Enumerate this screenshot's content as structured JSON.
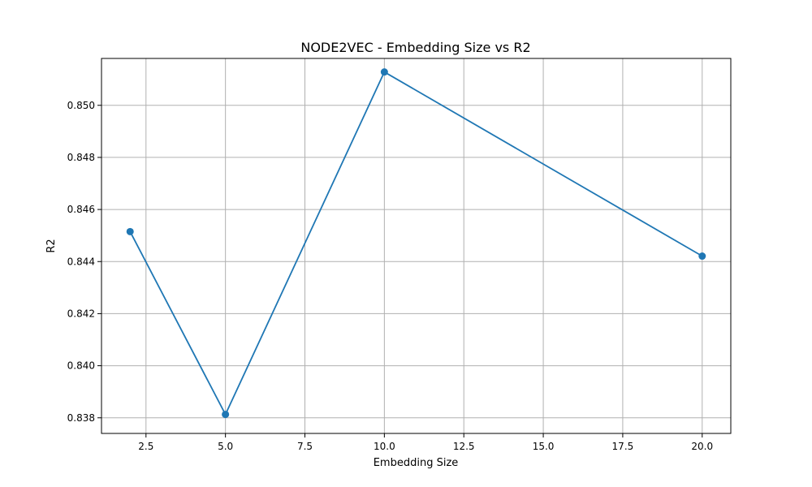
{
  "chart_data": {
    "type": "line",
    "title": "NODE2VEC - Embedding Size vs R2",
    "xlabel": "Embedding Size",
    "ylabel": "R2",
    "x": [
      2,
      5,
      10,
      20
    ],
    "series": [
      {
        "values": [
          0.84515,
          0.83813,
          0.85128,
          0.84421
        ]
      }
    ],
    "xlim": [
      1.1,
      20.9
    ],
    "ylim": [
      0.8374,
      0.8518
    ],
    "xticks": [
      2.5,
      5.0,
      7.5,
      10.0,
      12.5,
      15.0,
      17.5,
      20.0
    ],
    "xtick_labels": [
      "2.5",
      "5.0",
      "7.5",
      "10.0",
      "12.5",
      "15.0",
      "17.5",
      "20.0"
    ],
    "yticks": [
      0.838,
      0.84,
      0.842,
      0.844,
      0.846,
      0.848,
      0.85
    ],
    "ytick_labels": [
      "0.838",
      "0.840",
      "0.842",
      "0.844",
      "0.846",
      "0.848",
      "0.850"
    ],
    "grid": true,
    "marker": "circle",
    "line_color": "#1f77b4",
    "grid_color": "#b0b0b0"
  }
}
